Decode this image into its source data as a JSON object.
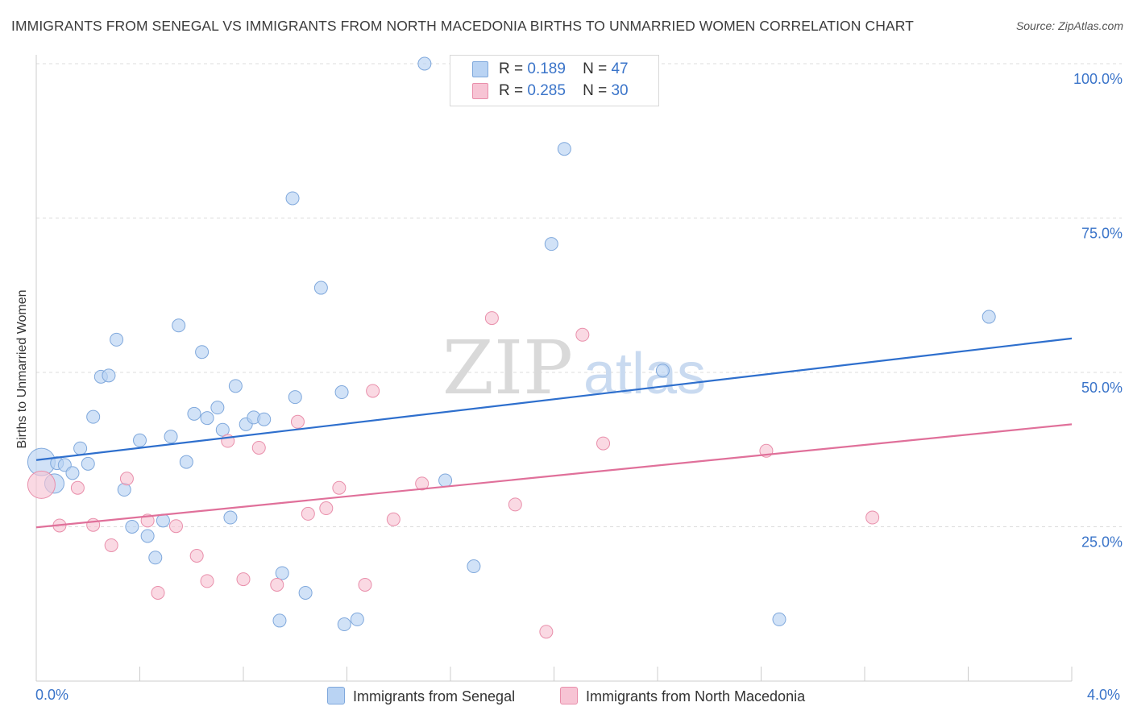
{
  "header": {
    "title": "IMMIGRANTS FROM SENEGAL VS IMMIGRANTS FROM NORTH MACEDONIA BIRTHS TO UNMARRIED WOMEN CORRELATION CHART",
    "source": "Source: ZipAtlas.com"
  },
  "watermark": {
    "zip": "ZIP",
    "atlas": "atlas"
  },
  "legend": {
    "senegal": {
      "r_label": "R =",
      "r_value": "0.189",
      "n_label": "N =",
      "n_value": "47"
    },
    "macedonia": {
      "r_label": "R =",
      "r_value": "0.285",
      "n_label": "N =",
      "n_value": "30"
    }
  },
  "colors": {
    "senegal_fill": "#b9d3f3",
    "senegal_stroke": "#7fa8dc",
    "senegal_line": "#2e6fcd",
    "macedonia_fill": "#f7c4d4",
    "macedonia_stroke": "#e98fab",
    "macedonia_line": "#e0709a",
    "axis_label": "#3a74c9",
    "grid": "#dcdcdc"
  },
  "chart_data": {
    "type": "scatter",
    "title": "IMMIGRANTS FROM SENEGAL VS IMMIGRANTS FROM NORTH MACEDONIA BIRTHS TO UNMARRIED WOMEN CORRELATION CHART",
    "xlabel": "",
    "ylabel": "Births to Unmarried Women",
    "xlim": [
      0,
      4.0
    ],
    "ylim": [
      0,
      100
    ],
    "x_tick_labels": [
      "0.0%",
      "4.0%"
    ],
    "y_tick_values": [
      25,
      50,
      75,
      100
    ],
    "y_tick_labels": [
      "25.0%",
      "50.0%",
      "75.0%",
      "100.0%"
    ],
    "grid": true,
    "legend_position": "top-center",
    "series": [
      {
        "name": "Immigrants from Senegal",
        "trend": {
          "x": [
            0.0,
            4.0
          ],
          "y": [
            35.8,
            55.5
          ]
        },
        "points": [
          {
            "x": 0.02,
            "y": 35.5,
            "s": "l"
          },
          {
            "x": 0.08,
            "y": 35.3
          },
          {
            "x": 0.07,
            "y": 32.0,
            "s": "m"
          },
          {
            "x": 0.11,
            "y": 35.0
          },
          {
            "x": 0.14,
            "y": 33.7
          },
          {
            "x": 0.17,
            "y": 37.7
          },
          {
            "x": 0.2,
            "y": 35.2
          },
          {
            "x": 0.22,
            "y": 42.8
          },
          {
            "x": 0.25,
            "y": 49.3
          },
          {
            "x": 0.28,
            "y": 49.5
          },
          {
            "x": 0.31,
            "y": 55.3
          },
          {
            "x": 0.34,
            "y": 31.0
          },
          {
            "x": 0.37,
            "y": 25.0
          },
          {
            "x": 0.4,
            "y": 39.0
          },
          {
            "x": 0.43,
            "y": 23.5
          },
          {
            "x": 0.46,
            "y": 20.0
          },
          {
            "x": 0.49,
            "y": 26.0
          },
          {
            "x": 0.52,
            "y": 39.6
          },
          {
            "x": 0.55,
            "y": 57.6
          },
          {
            "x": 0.58,
            "y": 35.5
          },
          {
            "x": 0.61,
            "y": 43.3
          },
          {
            "x": 0.64,
            "y": 53.3
          },
          {
            "x": 0.66,
            "y": 42.6
          },
          {
            "x": 0.7,
            "y": 44.3
          },
          {
            "x": 0.72,
            "y": 40.7
          },
          {
            "x": 0.75,
            "y": 26.5
          },
          {
            "x": 0.77,
            "y": 47.8
          },
          {
            "x": 0.81,
            "y": 41.6
          },
          {
            "x": 0.84,
            "y": 42.7
          },
          {
            "x": 0.88,
            "y": 42.4
          },
          {
            "x": 0.94,
            "y": 9.8
          },
          {
            "x": 0.95,
            "y": 17.5
          },
          {
            "x": 0.99,
            "y": 78.2
          },
          {
            "x": 1.0,
            "y": 46.0
          },
          {
            "x": 1.04,
            "y": 14.3
          },
          {
            "x": 1.1,
            "y": 63.7
          },
          {
            "x": 1.18,
            "y": 46.8
          },
          {
            "x": 1.19,
            "y": 9.2
          },
          {
            "x": 1.24,
            "y": 10.0
          },
          {
            "x": 1.5,
            "y": 100.0
          },
          {
            "x": 1.58,
            "y": 32.5
          },
          {
            "x": 1.69,
            "y": 18.6
          },
          {
            "x": 1.99,
            "y": 70.8
          },
          {
            "x": 2.04,
            "y": 86.2
          },
          {
            "x": 2.42,
            "y": 50.3
          },
          {
            "x": 2.87,
            "y": 10.0
          },
          {
            "x": 3.68,
            "y": 59.0
          }
        ]
      },
      {
        "name": "Immigrants from North Macedonia",
        "trend": {
          "x": [
            0.0,
            4.0
          ],
          "y": [
            24.9,
            41.6
          ]
        },
        "points": [
          {
            "x": 0.02,
            "y": 31.8,
            "s": "l"
          },
          {
            "x": 0.09,
            "y": 25.2
          },
          {
            "x": 0.16,
            "y": 31.3
          },
          {
            "x": 0.22,
            "y": 25.3
          },
          {
            "x": 0.29,
            "y": 22.0
          },
          {
            "x": 0.35,
            "y": 32.8
          },
          {
            "x": 0.43,
            "y": 26.0
          },
          {
            "x": 0.47,
            "y": 14.3
          },
          {
            "x": 0.54,
            "y": 25.1
          },
          {
            "x": 0.62,
            "y": 20.3
          },
          {
            "x": 0.66,
            "y": 16.2
          },
          {
            "x": 0.74,
            "y": 38.9
          },
          {
            "x": 0.8,
            "y": 16.5
          },
          {
            "x": 0.86,
            "y": 37.8
          },
          {
            "x": 0.93,
            "y": 15.6
          },
          {
            "x": 1.01,
            "y": 42.0
          },
          {
            "x": 1.05,
            "y": 27.1
          },
          {
            "x": 1.12,
            "y": 28.0
          },
          {
            "x": 1.17,
            "y": 31.3
          },
          {
            "x": 1.27,
            "y": 15.6
          },
          {
            "x": 1.3,
            "y": 47.0
          },
          {
            "x": 1.38,
            "y": 26.2
          },
          {
            "x": 1.49,
            "y": 32.0
          },
          {
            "x": 1.76,
            "y": 58.8
          },
          {
            "x": 1.85,
            "y": 28.6
          },
          {
            "x": 1.97,
            "y": 8.0
          },
          {
            "x": 2.11,
            "y": 56.1
          },
          {
            "x": 2.19,
            "y": 38.5
          },
          {
            "x": 2.82,
            "y": 37.3
          },
          {
            "x": 3.23,
            "y": 26.5
          }
        ]
      }
    ]
  }
}
